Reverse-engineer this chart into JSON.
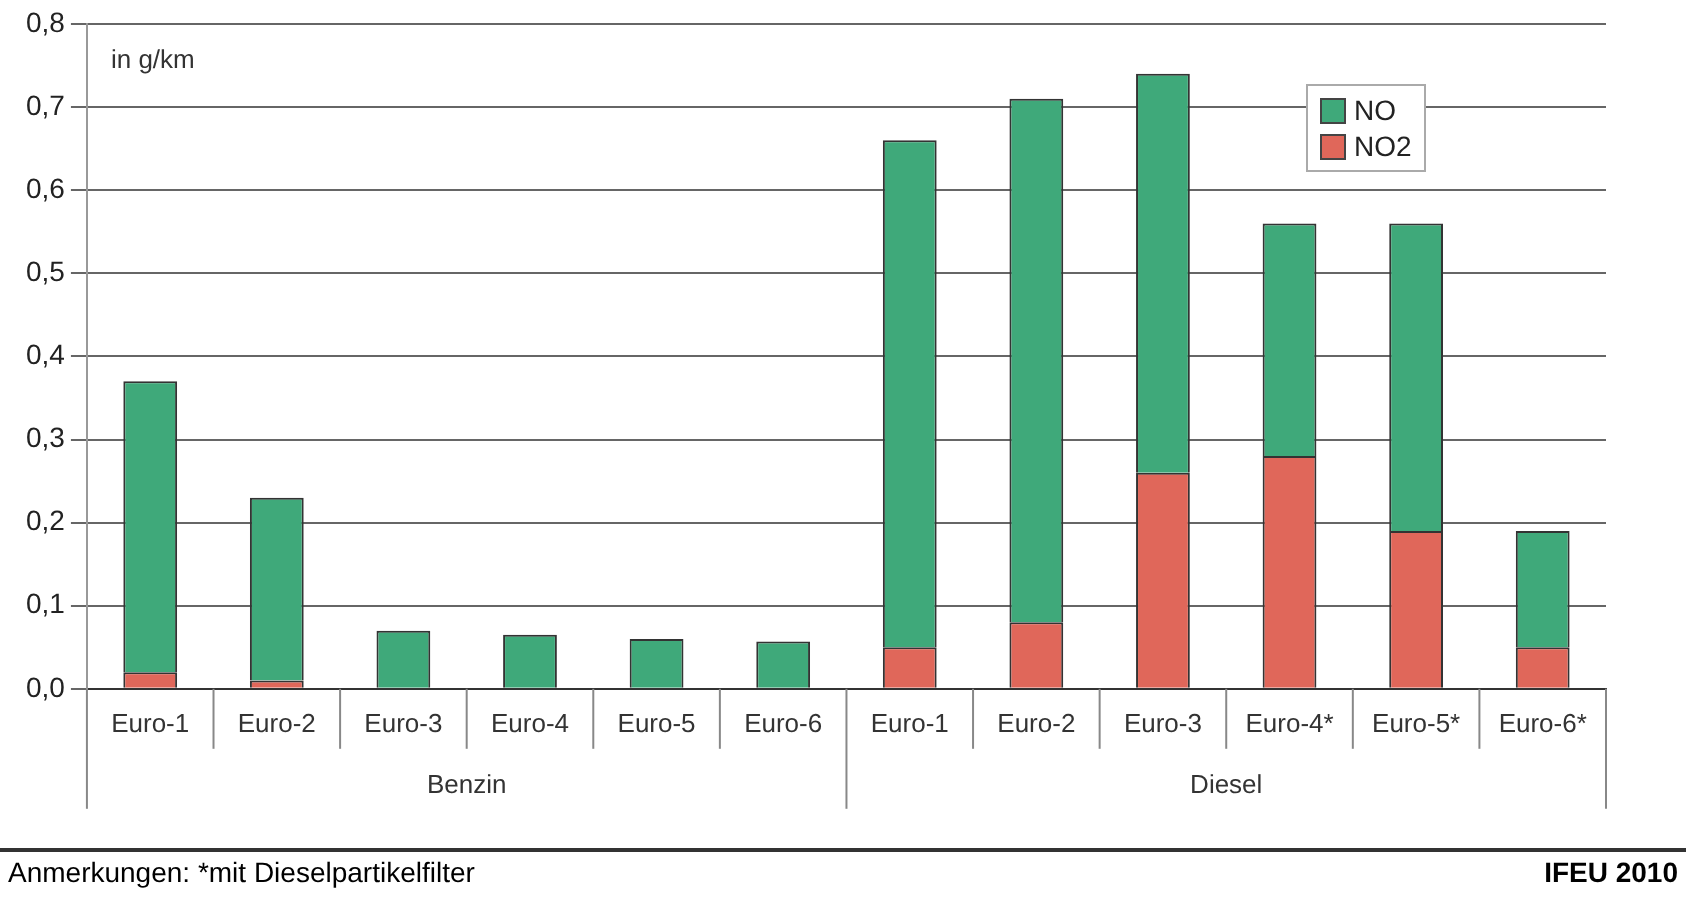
{
  "chart_data": {
    "type": "bar",
    "stacked": true,
    "ylabel": "in g/km",
    "categories": [
      "Euro-1",
      "Euro-2",
      "Euro-3",
      "Euro-4",
      "Euro-5",
      "Euro-6",
      "Euro-1",
      "Euro-2",
      "Euro-3",
      "Euro-4*",
      "Euro-5*",
      "Euro-6*"
    ],
    "series": [
      {
        "name": "NO2",
        "color": "#e0675a",
        "values": [
          0.02,
          0.01,
          0,
          0,
          0,
          0,
          0.05,
          0.08,
          0.26,
          0.28,
          0.19,
          0.05
        ]
      },
      {
        "name": "NO",
        "color": "#3fa97a",
        "values": [
          0.35,
          0.22,
          0.07,
          0.065,
          0.06,
          0.057,
          0.61,
          0.63,
          0.48,
          0.28,
          0.37,
          0.14
        ]
      }
    ],
    "ylim": [
      0,
      0.8
    ],
    "yticks": [
      {
        "value": 0,
        "label": "0,0"
      },
      {
        "value": 0.1,
        "label": "0,1"
      },
      {
        "value": 0.2,
        "label": "0,2"
      },
      {
        "value": 0.3,
        "label": "0,3"
      },
      {
        "value": 0.4,
        "label": "0,4"
      },
      {
        "value": 0.5,
        "label": "0,5"
      },
      {
        "value": 0.6,
        "label": "0,6"
      },
      {
        "value": 0.7,
        "label": "0,7"
      },
      {
        "value": 0.8,
        "label": "0,8"
      }
    ],
    "grid": "y",
    "legend": "top right",
    "annotations": [
      "Benzin",
      "Diesel",
      "Anmerkungen: *mit Dieselpartikelfilter",
      "IFEU 2010"
    ]
  }
}
